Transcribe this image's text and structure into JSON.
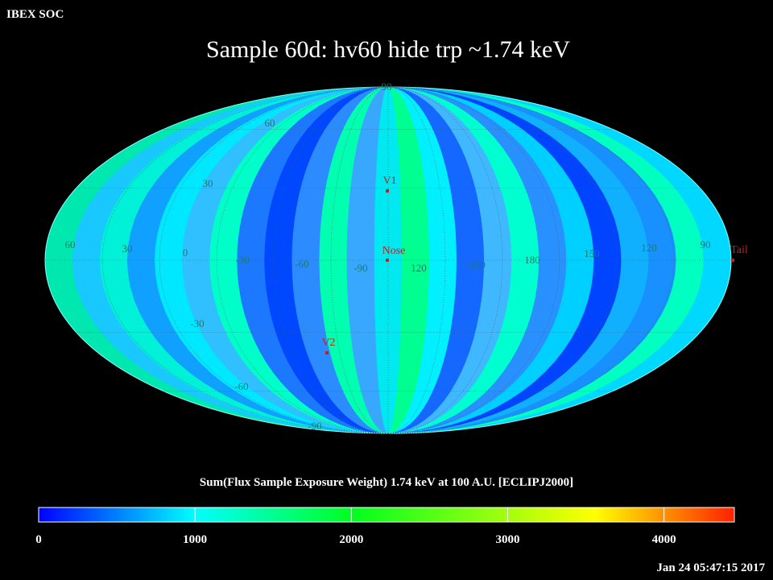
{
  "header": {
    "org": "IBEX SOC",
    "title": "Sample 60d: hv60 hide trp ~1.74 keV"
  },
  "map": {
    "grid_labels": [
      "90",
      "60",
      "30",
      "60",
      "30",
      "0",
      "-30",
      "-60",
      "-90",
      "120",
      "-150",
      "180",
      "150",
      "120",
      "90",
      "-30",
      "-60",
      "-90"
    ],
    "markers": [
      {
        "label": "V1"
      },
      {
        "label": "Nose"
      },
      {
        "label": "V2"
      },
      {
        "label": "Tail"
      }
    ]
  },
  "colorbar": {
    "label": "Sum(Flux Sample Exposure Weight)  1.74 keV at 100 A.U. [ECLIPJ2000]",
    "range": [
      0,
      4450
    ],
    "ticks": [
      0,
      1000,
      2000,
      3000,
      4000
    ]
  },
  "timestamp": "Jan 24 05:47:15 2017"
}
